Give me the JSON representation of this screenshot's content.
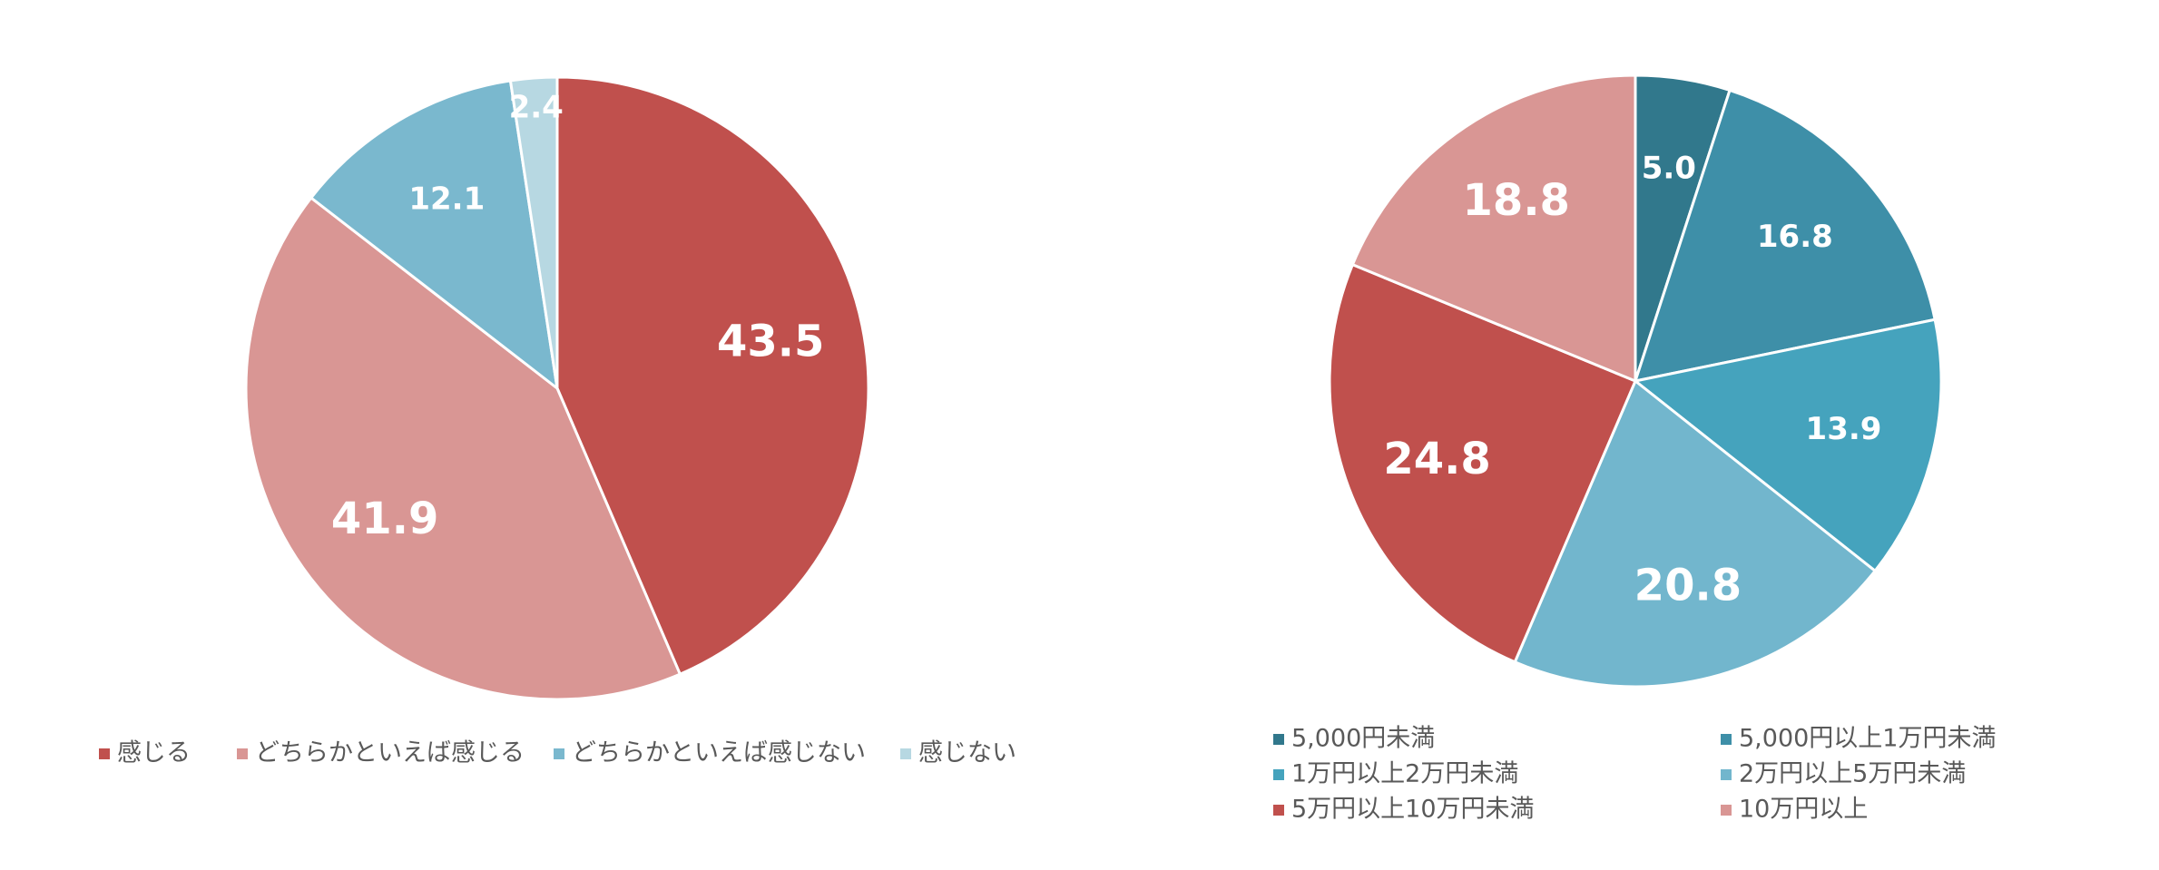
{
  "chart_data": [
    {
      "type": "pie",
      "categories": [
        "感じる",
        "どちらかといえば感じる",
        "どちらかといえば感じない",
        "感じない"
      ],
      "values": [
        43.5,
        41.9,
        12.1,
        2.4
      ],
      "colors": [
        "#c0504d",
        "#d99694",
        "#7ab8ce",
        "#b7d8e2"
      ],
      "legend": "bottom"
    },
    {
      "type": "pie",
      "categories": [
        "5,000円未満",
        "5,000円以上1万円未満",
        "1万円以上2万円未満",
        "2万円以上5万円未満",
        "5万円以上10万円未満",
        "10万円以上"
      ],
      "values": [
        5.0,
        16.8,
        13.9,
        20.8,
        24.8,
        18.8
      ],
      "value_labels": [
        "5.0",
        "16.8",
        "13.9",
        "20.8",
        "24.8",
        "18.8"
      ],
      "colors": [
        "#31788c",
        "#3e8fa8",
        "#45a3bd",
        "#72b6cd",
        "#c0504d",
        "#d99694"
      ],
      "legend": "bottom"
    }
  ]
}
